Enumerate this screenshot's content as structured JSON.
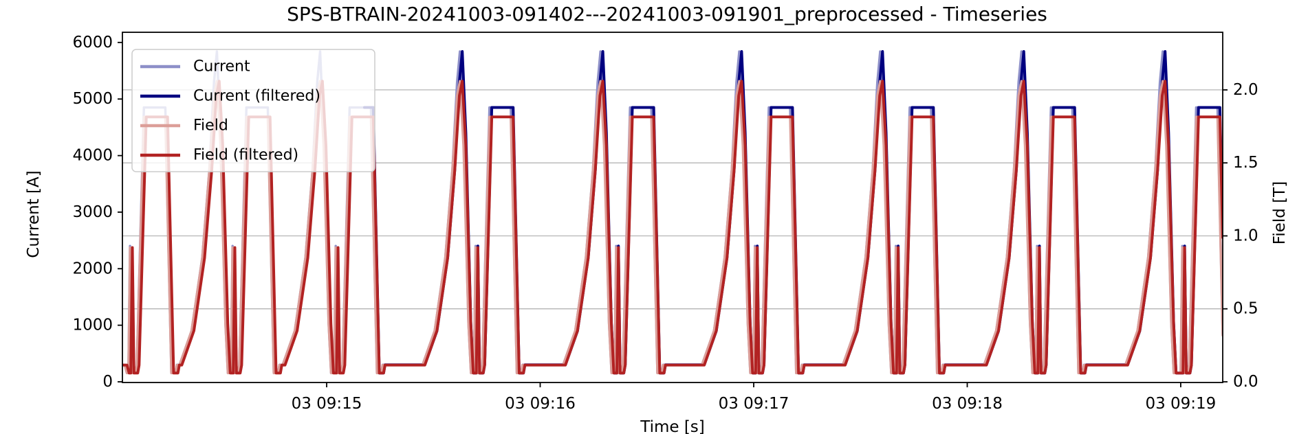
{
  "figure": {
    "background": "#ffffff"
  },
  "chart_data": {
    "type": "line",
    "title": "SPS-BTRAIN-20241003-091402---20241003-091901_preprocessed - Timeseries",
    "xlabel": "Time [s]",
    "ylabel_left": "Current [A]",
    "ylabel_right": "Field [T]",
    "x_range_s": [
      0,
      309.2
    ],
    "ylim_left": [
      0,
      6180
    ],
    "ylim_right": [
      0,
      2.395
    ],
    "grid_on": true,
    "legend_position": "upper left",
    "colors": {
      "current": "#8d8fc8",
      "current_filtered": "#000080",
      "field": "#dc9e98",
      "field_filtered": "#b22222",
      "grid": "#b4b4b4",
      "spine": "#000000",
      "legend_border": "#cccccc"
    },
    "x_ticks": [
      {
        "label": "03 09:15",
        "t": 57.4
      },
      {
        "label": "03 09:16",
        "t": 117.4
      },
      {
        "label": "03 09:17",
        "t": 177.4
      },
      {
        "label": "03 09:18",
        "t": 237.4
      },
      {
        "label": "03 09:19",
        "t": 297.4
      }
    ],
    "y_ticks_left": [
      {
        "label": "0",
        "v": 0
      },
      {
        "label": "1000",
        "v": 1000
      },
      {
        "label": "2000",
        "v": 2000
      },
      {
        "label": "3000",
        "v": 3000
      },
      {
        "label": "4000",
        "v": 4000
      },
      {
        "label": "5000",
        "v": 5000
      },
      {
        "label": "6000",
        "v": 6000
      }
    ],
    "y_ticks_right": [
      {
        "label": "0.0",
        "v": 0,
        "grid": false
      },
      {
        "label": "0.5",
        "v": 0.5,
        "grid": true
      },
      {
        "label": "1.0",
        "v": 1.0,
        "grid": true
      },
      {
        "label": "1.5",
        "v": 1.5,
        "grid": true
      },
      {
        "label": "2.0",
        "v": 2.0,
        "grid": true
      }
    ],
    "series": [
      {
        "name": "Current",
        "axis": "left",
        "levels": "current",
        "color": "#8d8fc8",
        "width": 3.5,
        "time_shift_s": -0.65,
        "start_s": 0
      },
      {
        "name": "Current (filtered)",
        "axis": "left",
        "levels": "current",
        "color": "#000080",
        "width": 4,
        "time_shift_s": 0,
        "start_s": 68
      },
      {
        "name": "Field",
        "axis": "right",
        "levels": "field",
        "color": "#dc9e98",
        "width": 3.5,
        "time_shift_s": -0.65,
        "start_s": 0
      },
      {
        "name": "Field (filtered)",
        "axis": "right",
        "levels": "field",
        "color": "#b22222",
        "width": 4,
        "time_shift_s": 0,
        "start_s": 0
      }
    ],
    "levels": {
      "current": {
        "base": 300,
        "dip": 155,
        "spike": 2400,
        "flat": 4850,
        "r1": 900,
        "r2": 2200,
        "r3": 3750,
        "r4": 5300,
        "apex": 5840,
        "f1": 4400,
        "f2": 1050
      },
      "field": {
        "base": 0.115,
        "dip": 0.06,
        "spike": 0.92,
        "flat": 1.815,
        "r1": 0.35,
        "r2": 0.85,
        "r3": 1.45,
        "r4": 1.96,
        "apex": 2.06,
        "f1": 1.62,
        "f2": 0.4
      }
    },
    "waveform": {
      "preamble": [
        [
          0,
          "base"
        ],
        [
          1.3,
          "base"
        ]
      ],
      "spike_times": [
        2.8,
        31.6,
        60.6,
        99.9,
        139.4,
        178.4,
        218.0,
        257.7,
        298.5
      ],
      "tall_times": [
        27.2,
        56.2,
        95.5,
        135.0,
        174.0,
        213.6,
        253.3,
        293.0
      ],
      "spike_shape": [
        [
          -0.9,
          "dip"
        ],
        [
          -0.45,
          "dip"
        ],
        [
          0,
          "spike"
        ],
        [
          0.45,
          "dip"
        ],
        [
          1.5,
          "dip"
        ],
        [
          1.9,
          "base"
        ],
        [
          3.9,
          "flat"
        ],
        [
          9.9,
          "flat"
        ],
        [
          11.6,
          "dip"
        ],
        [
          12.8,
          "dip"
        ],
        [
          13.2,
          "base"
        ]
      ],
      "tall_shape": [
        [
          -10.5,
          "base"
        ],
        [
          -7.1,
          "r1"
        ],
        [
          -4.1,
          "r2"
        ],
        [
          -2.1,
          "r3"
        ],
        [
          -0.8,
          "r4"
        ],
        [
          0,
          "apex"
        ],
        [
          1.0,
          "f1"
        ],
        [
          2.4,
          "f2"
        ],
        [
          3.1,
          "dip"
        ]
      ]
    }
  }
}
